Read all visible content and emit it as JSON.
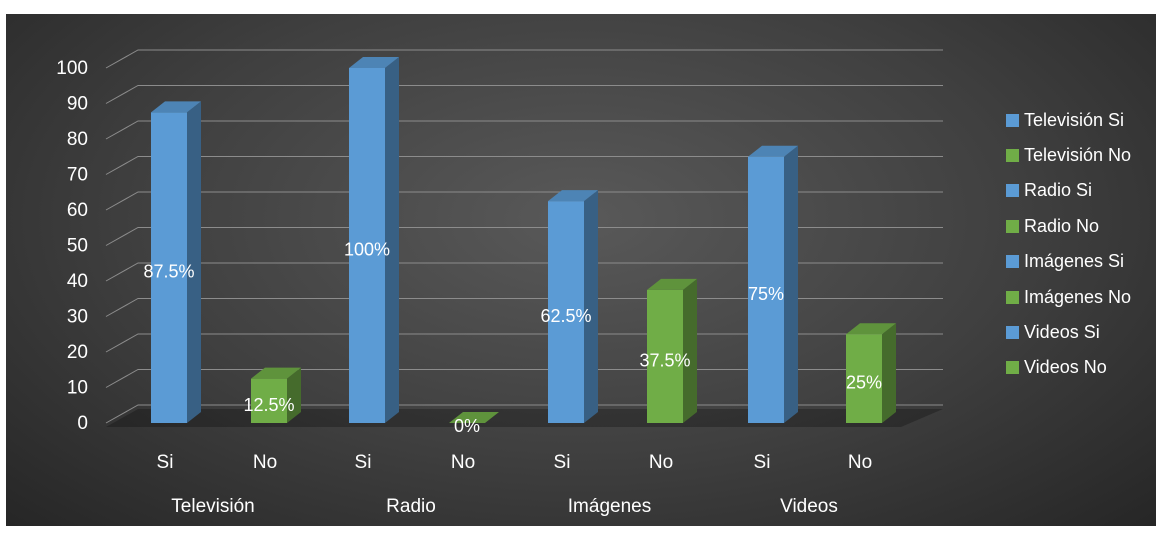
{
  "chart_data": {
    "type": "bar",
    "groups": [
      {
        "name": "Televisión",
        "categories": [
          "Si",
          "No"
        ],
        "values": [
          87.5,
          12.5
        ],
        "labels": [
          "87.5%",
          "12.5%"
        ]
      },
      {
        "name": "Radio",
        "categories": [
          "Si",
          "No"
        ],
        "values": [
          100,
          0
        ],
        "labels": [
          "100%",
          "0%"
        ]
      },
      {
        "name": "Imágenes",
        "categories": [
          "Si",
          "No"
        ],
        "values": [
          62.5,
          37.5
        ],
        "labels": [
          "62.5%",
          "37.5%"
        ]
      },
      {
        "name": "Videos",
        "categories": [
          "Si",
          "No"
        ],
        "values": [
          75,
          25
        ],
        "labels": [
          "75%",
          "25%"
        ]
      }
    ],
    "legend": [
      "Televisión Si",
      "Televisión No",
      "Radio Si",
      "Radio No",
      "Imágenes Si",
      "Imágenes No",
      "Videos Si",
      "Videos No"
    ],
    "yticks": [
      "0",
      "10",
      "20",
      "30",
      "40",
      "50",
      "60",
      "70",
      "80",
      "90",
      "100"
    ],
    "ylim": [
      0,
      100
    ],
    "grid": true,
    "legend_position": "right",
    "style": "3d",
    "colors": {
      "si": "#5b9bd5",
      "no": "#70ad47",
      "background": "#404040"
    }
  }
}
